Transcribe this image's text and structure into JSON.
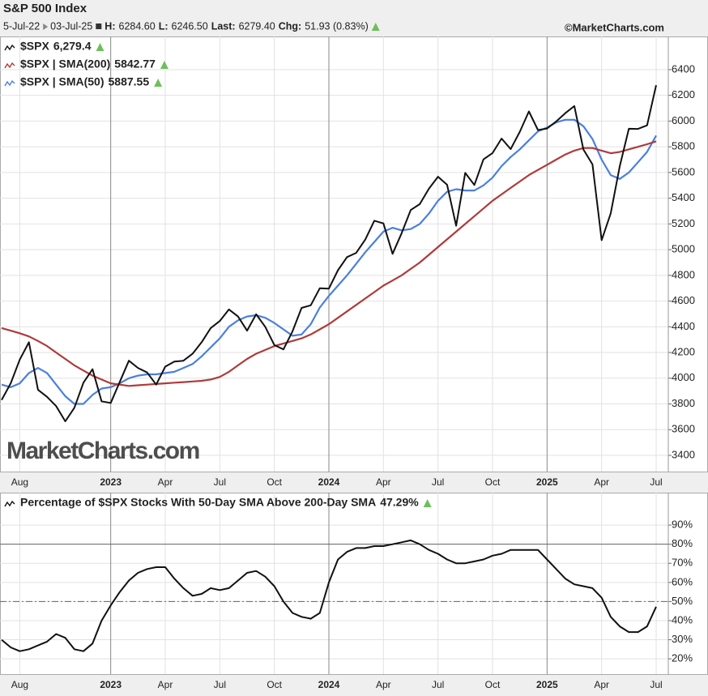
{
  "header": {
    "title": "S&P 500 Index",
    "date_start": "5-Jul-22",
    "date_end": "03-Jul-25",
    "stats": [
      [
        "H:",
        "6284.60"
      ],
      [
        "L:",
        "6246.50"
      ],
      [
        "Last:",
        "6279.40"
      ],
      [
        "Chg:",
        "51.93 (0.83%)"
      ]
    ],
    "source": "©MarketCharts.com"
  },
  "chart_data": [
    {
      "type": "line",
      "watermark": "MarketCharts.com",
      "categories": [
        null,
        null,
        "Aug",
        null,
        null,
        null,
        null,
        null,
        null,
        null,
        null,
        null,
        "2023",
        null,
        null,
        null,
        null,
        null,
        "Apr",
        null,
        null,
        null,
        null,
        null,
        "Jul",
        null,
        null,
        null,
        null,
        null,
        "Oct",
        null,
        null,
        null,
        null,
        null,
        "2024",
        null,
        null,
        null,
        null,
        null,
        "Apr",
        null,
        null,
        null,
        null,
        null,
        "Jul",
        null,
        null,
        null,
        null,
        null,
        "Oct",
        null,
        null,
        null,
        null,
        null,
        "2025",
        null,
        null,
        null,
        null,
        null,
        "Apr",
        null,
        null,
        null,
        null,
        null,
        "Jul"
      ],
      "series": [
        {
          "name": "$SPX",
          "last_label": "6,279.4",
          "color": "#111111",
          "values": [
            3831,
            3960,
            4145,
            4280,
            3910,
            3855,
            3783,
            3665,
            3770,
            3965,
            4070,
            3820,
            3808,
            3972,
            4136,
            4080,
            4045,
            3950,
            4090,
            4130,
            4136,
            4190,
            4280,
            4390,
            4445,
            4535,
            4480,
            4370,
            4497,
            4400,
            4258,
            4224,
            4365,
            4547,
            4567,
            4700,
            4697,
            4840,
            4942,
            4975,
            5078,
            5225,
            5204,
            4967,
            5128,
            5308,
            5354,
            5473,
            5567,
            5505,
            5186,
            5597,
            5503,
            5702,
            5751,
            5864,
            5782,
            5917,
            6075,
            5930,
            5942,
            5997,
            6061,
            6117,
            5779,
            5663,
            5074,
            5282,
            5650,
            5940,
            5939,
            5967,
            6279.4
          ]
        },
        {
          "name": "$SPX | SMA(200)",
          "last_label": "5842.77",
          "color": "#b03a3a",
          "values": [
            4390,
            4370,
            4350,
            4325,
            4290,
            4250,
            4200,
            4150,
            4100,
            4060,
            4020,
            3990,
            3960,
            3950,
            3940,
            3945,
            3950,
            3955,
            3960,
            3965,
            3970,
            3975,
            3980,
            3990,
            4010,
            4050,
            4100,
            4150,
            4190,
            4220,
            4250,
            4270,
            4290,
            4310,
            4340,
            4380,
            4420,
            4470,
            4520,
            4570,
            4620,
            4670,
            4720,
            4760,
            4800,
            4850,
            4900,
            4960,
            5020,
            5080,
            5140,
            5200,
            5260,
            5320,
            5380,
            5430,
            5480,
            5530,
            5580,
            5620,
            5660,
            5700,
            5740,
            5770,
            5790,
            5790,
            5770,
            5750,
            5760,
            5780,
            5800,
            5820,
            5842.77
          ]
        },
        {
          "name": "$SPX | SMA(50)",
          "last_label": "5887.55",
          "color": "#4a7fe0",
          "values": [
            3950,
            3930,
            3960,
            4040,
            4080,
            4040,
            3950,
            3860,
            3800,
            3800,
            3870,
            3920,
            3930,
            3960,
            4000,
            4020,
            4030,
            4030,
            4040,
            4050,
            4080,
            4110,
            4170,
            4240,
            4310,
            4400,
            4450,
            4480,
            4490,
            4470,
            4430,
            4380,
            4330,
            4340,
            4420,
            4550,
            4640,
            4720,
            4800,
            4890,
            4980,
            5060,
            5140,
            5170,
            5150,
            5160,
            5200,
            5280,
            5380,
            5450,
            5470,
            5460,
            5460,
            5500,
            5560,
            5650,
            5720,
            5780,
            5850,
            5920,
            5950,
            5990,
            6010,
            6010,
            5960,
            5860,
            5700,
            5580,
            5550,
            5600,
            5680,
            5760,
            5887.55
          ]
        }
      ],
      "ylim": [
        3274,
        6658
      ],
      "yticks": [
        3400,
        3600,
        3800,
        4000,
        4200,
        4400,
        4600,
        4800,
        5000,
        5200,
        5400,
        5600,
        5800,
        6000,
        6200,
        6400
      ],
      "grid": true
    },
    {
      "type": "line",
      "categories": [
        null,
        null,
        "Aug",
        null,
        null,
        null,
        null,
        null,
        null,
        null,
        null,
        null,
        "2023",
        null,
        null,
        null,
        null,
        null,
        "Apr",
        null,
        null,
        null,
        null,
        null,
        "Jul",
        null,
        null,
        null,
        null,
        null,
        "Oct",
        null,
        null,
        null,
        null,
        null,
        "2024",
        null,
        null,
        null,
        null,
        null,
        "Apr",
        null,
        null,
        null,
        null,
        null,
        "Jul",
        null,
        null,
        null,
        null,
        null,
        "Oct",
        null,
        null,
        null,
        null,
        null,
        "2025",
        null,
        null,
        null,
        null,
        null,
        "Apr",
        null,
        null,
        null,
        null,
        null,
        "Jul"
      ],
      "series": [
        {
          "name": "Percentage of $SPX Stocks With 50-Day SMA Above 200-Day SMA",
          "last_label": "47.29%",
          "color": "#111111",
          "values": [
            30,
            26,
            24,
            25,
            27,
            29,
            33,
            31,
            25,
            24,
            28,
            40,
            48,
            55,
            61,
            65,
            67,
            68,
            68,
            62,
            57,
            53,
            54,
            57,
            56,
            57,
            61,
            65,
            66,
            63,
            58,
            50,
            44,
            42,
            41,
            44,
            60,
            72,
            76,
            78,
            78,
            79,
            79,
            80,
            81,
            82,
            80,
            77,
            75,
            72,
            70,
            70,
            71,
            72,
            74,
            75,
            77,
            77,
            77,
            77,
            72,
            67,
            62,
            59,
            58,
            57,
            52,
            42,
            37,
            34,
            34,
            37,
            47.29
          ]
        }
      ],
      "ylim": [
        12,
        107
      ],
      "yticks": [
        {
          "value": 20,
          "label": "20%"
        },
        {
          "value": 30,
          "label": "30%"
        },
        {
          "value": 40,
          "label": "40%"
        },
        {
          "value": 50,
          "label": "50%"
        },
        {
          "value": 60,
          "label": "60%"
        },
        {
          "value": 70,
          "label": "70%"
        },
        {
          "value": 80,
          "label": "80%"
        },
        {
          "value": 90,
          "label": "90%"
        }
      ],
      "reference_lines": [
        {
          "value": 80,
          "style": "solid"
        },
        {
          "value": 50,
          "style": "dashdot"
        }
      ],
      "grid": true
    }
  ]
}
